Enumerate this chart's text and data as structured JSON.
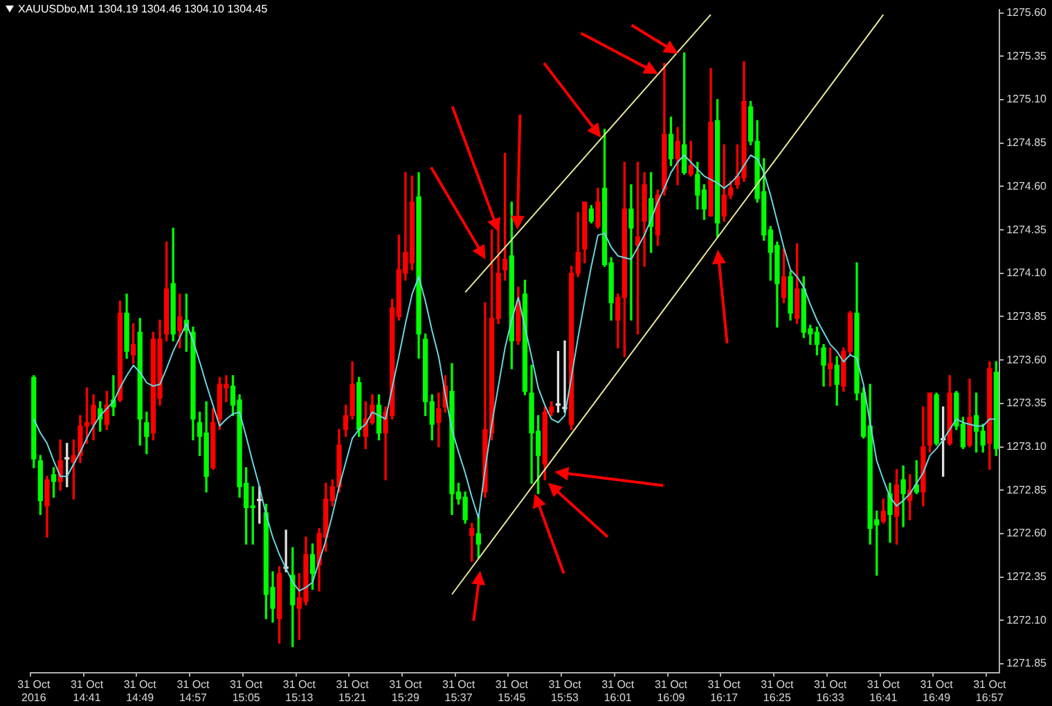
{
  "chart_data": {
    "type": "candlestick",
    "title": "XAUUSDbo,M1 1304.19 1304.46 1304.10 1304.45",
    "categories": [
      "31 Oct 2016",
      null,
      null,
      null,
      null,
      null,
      null,
      null,
      "31 Oct 14:41",
      null,
      null,
      null,
      null,
      null,
      null,
      null,
      "31 Oct 14:49",
      null,
      null,
      null,
      null,
      null,
      null,
      null,
      "31 Oct 14:57",
      null,
      null,
      null,
      null,
      null,
      null,
      null,
      "31 Oct 15:05",
      null,
      null,
      null,
      null,
      null,
      null,
      null,
      "31 Oct 15:13",
      null,
      null,
      null,
      null,
      null,
      null,
      null,
      "31 Oct 15:21",
      null,
      null,
      null,
      null,
      null,
      null,
      null,
      "31 Oct 15:29",
      null,
      null,
      null,
      null,
      null,
      null,
      null,
      "31 Oct 15:37",
      null,
      null,
      null,
      null,
      null,
      null,
      null,
      "31 Oct 15:45",
      null,
      null,
      null,
      null,
      null,
      null,
      null,
      "31 Oct 15:53",
      null,
      null,
      null,
      null,
      null,
      null,
      null,
      "31 Oct 16:01",
      null,
      null,
      null,
      null,
      null,
      null,
      null,
      "31 Oct 16:09",
      null,
      null,
      null,
      null,
      null,
      null,
      null,
      "31 Oct 16:17",
      null,
      null,
      null,
      null,
      null,
      null,
      null,
      "31 Oct 16:25",
      null,
      null,
      null,
      null,
      null,
      null,
      null,
      "31 Oct 16:33",
      null,
      null,
      null,
      null,
      null,
      null,
      null,
      "31 Oct 16:41",
      null,
      null,
      null,
      null,
      null,
      null,
      null,
      "31 Oct 16:49",
      null,
      null,
      null,
      null,
      null,
      null,
      null,
      "31 Oct 16:57",
      null
    ],
    "ohlc": [
      [
        1273.5,
        1273.51,
        1272.98,
        1273.03
      ],
      [
        1273.02,
        1273.05,
        1272.71,
        1272.79
      ],
      [
        1272.76,
        1272.93,
        1272.58,
        1272.91
      ],
      [
        1272.94,
        1272.98,
        1272.81,
        1272.9
      ],
      [
        1272.9,
        1273.14,
        1272.85,
        1273.02
      ],
      [
        1273.03,
        1273.12,
        1272.87,
        1273.03
      ],
      [
        1273.01,
        1273.14,
        1272.8,
        1273.05
      ],
      [
        1273.05,
        1273.28,
        1273.01,
        1273.22
      ],
      [
        1273.22,
        1273.44,
        1273.12,
        1273.24
      ],
      [
        1273.23,
        1273.4,
        1273.14,
        1273.34
      ],
      [
        1273.32,
        1273.36,
        1273.19,
        1273.26
      ],
      [
        1273.23,
        1273.42,
        1273.2,
        1273.34
      ],
      [
        1273.37,
        1273.51,
        1273.28,
        1273.33
      ],
      [
        1273.37,
        1273.94,
        1273.36,
        1273.87
      ],
      [
        1273.87,
        1273.98,
        1273.61,
        1273.65
      ],
      [
        1273.63,
        1273.81,
        1273.58,
        1273.69
      ],
      [
        1273.76,
        1273.84,
        1273.11,
        1273.26
      ],
      [
        1273.24,
        1273.3,
        1273.06,
        1273.16
      ],
      [
        1273.18,
        1273.76,
        1273.14,
        1273.72
      ],
      [
        1273.38,
        1273.83,
        1273.34,
        1273.72
      ],
      [
        1273.75,
        1274.28,
        1273.71,
        1274.01
      ],
      [
        1274.04,
        1274.36,
        1273.71,
        1273.75
      ],
      [
        1273.77,
        1273.98,
        1273.67,
        1273.85
      ],
      [
        1273.83,
        1273.98,
        1273.65,
        1273.77
      ],
      [
        1273.76,
        1273.79,
        1273.14,
        1273.26
      ],
      [
        1273.24,
        1273.3,
        1273.05,
        1273.16
      ],
      [
        1273.18,
        1273.36,
        1272.84,
        1272.93
      ],
      [
        1272.98,
        1273.32,
        1272.97,
        1273.24
      ],
      [
        1273.26,
        1273.5,
        1273.2,
        1273.46
      ],
      [
        1273.44,
        1273.51,
        1273.36,
        1273.46
      ],
      [
        1273.45,
        1273.51,
        1273.28,
        1273.34
      ],
      [
        1273.37,
        1273.4,
        1272.81,
        1272.87
      ],
      [
        1272.89,
        1272.98,
        1272.54,
        1272.75
      ],
      [
        1272.76,
        1272.87,
        1272.54,
        1272.75
      ],
      [
        1272.79,
        1272.87,
        1272.66,
        1272.79
      ],
      [
        1272.72,
        1272.77,
        1272.11,
        1272.25
      ],
      [
        1272.29,
        1272.38,
        1272.09,
        1272.17
      ],
      [
        1272.11,
        1272.41,
        1271.97,
        1272.37
      ],
      [
        1272.4,
        1272.62,
        1272.38,
        1272.4
      ],
      [
        1272.36,
        1272.52,
        1271.95,
        1272.19
      ],
      [
        1272.17,
        1272.37,
        1271.99,
        1272.23
      ],
      [
        1272.21,
        1272.58,
        1272.19,
        1272.48
      ],
      [
        1272.48,
        1272.54,
        1272.28,
        1272.37
      ],
      [
        1272.42,
        1272.63,
        1272.27,
        1272.6
      ],
      [
        1272.58,
        1272.89,
        1272.5,
        1272.8
      ],
      [
        1272.79,
        1272.91,
        1272.76,
        1272.87
      ],
      [
        1272.87,
        1273.2,
        1272.84,
        1273.11
      ],
      [
        1273.2,
        1273.34,
        1273.16,
        1273.28
      ],
      [
        1273.28,
        1273.59,
        1273.26,
        1273.46
      ],
      [
        1273.47,
        1273.5,
        1273.16,
        1273.2
      ],
      [
        1273.16,
        1273.36,
        1273.09,
        1273.26
      ],
      [
        1273.24,
        1273.4,
        1273.23,
        1273.34
      ],
      [
        1273.34,
        1273.4,
        1273.14,
        1273.18
      ],
      [
        1273.18,
        1273.33,
        1272.91,
        1273.3
      ],
      [
        1273.28,
        1273.95,
        1273.26,
        1273.9
      ],
      [
        1273.85,
        1274.32,
        1273.83,
        1274.12
      ],
      [
        1274.1,
        1274.68,
        1274.06,
        1274.22
      ],
      [
        1274.16,
        1274.66,
        1274.12,
        1274.51
      ],
      [
        1274.54,
        1274.68,
        1273.61,
        1273.75
      ],
      [
        1273.72,
        1273.75,
        1273.28,
        1273.36
      ],
      [
        1273.36,
        1273.4,
        1273.14,
        1273.23
      ],
      [
        1273.24,
        1273.41,
        1273.1,
        1273.32
      ],
      [
        1273.33,
        1273.51,
        1273.3,
        1273.45
      ],
      [
        1273.42,
        1273.58,
        1272.71,
        1272.83
      ],
      [
        1272.84,
        1272.89,
        1272.77,
        1272.8
      ],
      [
        1272.81,
        1272.84,
        1272.66,
        1272.68
      ],
      [
        1272.59,
        1272.66,
        1272.44,
        1272.63
      ],
      [
        1272.6,
        1272.7,
        1272.46,
        1272.54
      ],
      [
        1272.84,
        1273.93,
        1272.81,
        1273.2
      ],
      [
        1273.18,
        1274.35,
        1273.14,
        1273.84
      ],
      [
        1273.84,
        1274.4,
        1273.81,
        1274.1
      ],
      [
        1274.12,
        1274.79,
        1274.06,
        1274.18
      ],
      [
        1274.2,
        1274.51,
        1273.55,
        1273.71
      ],
      [
        1273.71,
        1274.02,
        1273.69,
        1273.94
      ],
      [
        1273.98,
        1274.06,
        1273.4,
        1273.42
      ],
      [
        1273.41,
        1273.57,
        1272.89,
        1273.18
      ],
      [
        1273.19,
        1273.28,
        1272.83,
        1273.05
      ],
      [
        1273.0,
        1273.33,
        1272.91,
        1273.3
      ],
      [
        1273.3,
        1273.36,
        1273.28,
        1273.33
      ],
      [
        1273.34,
        1273.65,
        1273.3,
        1273.34
      ],
      [
        1273.32,
        1273.71,
        1273.3,
        1273.32
      ],
      [
        1273.23,
        1274.14,
        1273.2,
        1274.1
      ],
      [
        1274.1,
        1274.45,
        1274.08,
        1274.22
      ],
      [
        1274.24,
        1274.51,
        1274.16,
        1274.51
      ],
      [
        1274.47,
        1274.49,
        1274.39,
        1274.4
      ],
      [
        1274.37,
        1274.59,
        1274.36,
        1274.51
      ],
      [
        1274.59,
        1274.93,
        1274.14,
        1274.15
      ],
      [
        1274.16,
        1274.19,
        1273.83,
        1273.93
      ],
      [
        1273.83,
        1273.98,
        1273.67,
        1273.96
      ],
      [
        1273.96,
        1274.74,
        1273.62,
        1274.47
      ],
      [
        1274.47,
        1274.61,
        1273.83,
        1274.36
      ],
      [
        1274.26,
        1274.74,
        1273.75,
        1274.31
      ],
      [
        1274.4,
        1274.68,
        1274.14,
        1274.61
      ],
      [
        1274.53,
        1274.68,
        1274.22,
        1274.37
      ],
      [
        1274.32,
        1274.58,
        1274.26,
        1274.55
      ],
      [
        1274.58,
        1275.31,
        1274.55,
        1274.9
      ],
      [
        1274.9,
        1275.0,
        1274.72,
        1274.76
      ],
      [
        1274.76,
        1274.94,
        1274.61,
        1274.86
      ],
      [
        1274.84,
        1275.37,
        1274.67,
        1274.68
      ],
      [
        1274.67,
        1274.86,
        1274.66,
        1274.72
      ],
      [
        1274.67,
        1274.74,
        1274.47,
        1274.55
      ],
      [
        1274.58,
        1274.61,
        1274.41,
        1274.47
      ],
      [
        1274.43,
        1275.28,
        1274.43,
        1274.97
      ],
      [
        1274.98,
        1275.1,
        1274.31,
        1274.39
      ],
      [
        1274.43,
        1274.84,
        1274.4,
        1274.55
      ],
      [
        1274.55,
        1274.63,
        1274.53,
        1274.59
      ],
      [
        1274.61,
        1274.84,
        1274.59,
        1274.66
      ],
      [
        1274.65,
        1275.32,
        1274.63,
        1275.09
      ],
      [
        1275.06,
        1275.09,
        1274.84,
        1274.86
      ],
      [
        1274.86,
        1274.98,
        1274.51,
        1274.53
      ],
      [
        1274.57,
        1274.76,
        1274.29,
        1274.32
      ],
      [
        1274.35,
        1274.37,
        1274.06,
        1274.22
      ],
      [
        1274.26,
        1274.28,
        1273.79,
        1274.04
      ],
      [
        1273.96,
        1274.24,
        1273.93,
        1274.08
      ],
      [
        1274.08,
        1274.11,
        1273.83,
        1273.87
      ],
      [
        1273.84,
        1274.27,
        1273.81,
        1274.01
      ],
      [
        1274.01,
        1274.08,
        1273.73,
        1273.76
      ],
      [
        1273.78,
        1273.8,
        1273.69,
        1273.75
      ],
      [
        1273.76,
        1273.79,
        1273.63,
        1273.69
      ],
      [
        1273.67,
        1273.69,
        1273.45,
        1273.57
      ],
      [
        1273.55,
        1273.67,
        1273.45,
        1273.58
      ],
      [
        1273.57,
        1273.62,
        1273.34,
        1273.46
      ],
      [
        1273.45,
        1273.67,
        1273.42,
        1273.65
      ],
      [
        1273.65,
        1273.88,
        1273.63,
        1273.87
      ],
      [
        1273.87,
        1274.16,
        1273.37,
        1273.41
      ],
      [
        1273.41,
        1273.44,
        1273.15,
        1273.16
      ],
      [
        1273.22,
        1273.46,
        1272.54,
        1272.63
      ],
      [
        1272.68,
        1272.73,
        1272.36,
        1272.65
      ],
      [
        1272.67,
        1272.8,
        1272.66,
        1272.73
      ],
      [
        1272.83,
        1272.89,
        1272.55,
        1272.71
      ],
      [
        1272.7,
        1272.97,
        1272.54,
        1272.88
      ],
      [
        1272.91,
        1272.99,
        1272.64,
        1272.83
      ],
      [
        1272.79,
        1272.94,
        1272.68,
        1272.85
      ],
      [
        1272.88,
        1273.02,
        1272.83,
        1272.84
      ],
      [
        1272.84,
        1273.33,
        1272.76,
        1273.1
      ],
      [
        1273.11,
        1273.41,
        1273.07,
        1273.41
      ],
      [
        1273.4,
        1273.41,
        1273.11,
        1273.12
      ],
      [
        1273.14,
        1273.33,
        1272.93,
        1273.14
      ],
      [
        1273.12,
        1273.51,
        1273.11,
        1273.41
      ],
      [
        1273.41,
        1273.42,
        1273.2,
        1273.22
      ],
      [
        1273.23,
        1273.27,
        1273.09,
        1273.1
      ],
      [
        1273.11,
        1273.49,
        1273.1,
        1273.27
      ],
      [
        1273.28,
        1273.41,
        1273.07,
        1273.19
      ],
      [
        1273.19,
        1273.23,
        1273.07,
        1273.11
      ],
      [
        1273.12,
        1273.59,
        1272.97,
        1273.55
      ],
      [
        1273.53,
        1273.59,
        1273.05,
        1273.09
      ]
    ],
    "colors": [
      "#00ff00",
      "#00ff00",
      "#ff0000",
      "#00ff00",
      "#ff0000",
      "#e0e0e0",
      "#ff0000",
      "#ff0000",
      "#ff0000",
      "#ff0000",
      "#00ff00",
      "#ff0000",
      "#00ff00",
      "#ff0000",
      "#00ff00",
      "#ff0000",
      "#00ff00",
      "#00ff00",
      "#ff0000",
      "#ff0000",
      "#ff0000",
      "#00ff00",
      "#ff0000",
      "#00ff00",
      "#00ff00",
      "#00ff00",
      "#00ff00",
      "#ff0000",
      "#ff0000",
      "#ff0000",
      "#00ff00",
      "#00ff00",
      "#00ff00",
      "#00ff00",
      "#e0e0e0",
      "#00ff00",
      "#00ff00",
      "#ff0000",
      "#e0e0e0",
      "#00ff00",
      "#ff0000",
      "#ff0000",
      "#00ff00",
      "#ff0000",
      "#ff0000",
      "#ff0000",
      "#ff0000",
      "#ff0000",
      "#ff0000",
      "#00ff00",
      "#ff0000",
      "#ff0000",
      "#00ff00",
      "#ff0000",
      "#ff0000",
      "#ff0000",
      "#ff0000",
      "#ff0000",
      "#00ff00",
      "#00ff00",
      "#00ff00",
      "#ff0000",
      "#ff0000",
      "#00ff00",
      "#00ff00",
      "#00ff00",
      "#ff0000",
      "#00ff00",
      "#ff0000",
      "#ff0000",
      "#ff0000",
      "#ff0000",
      "#00ff00",
      "#ff0000",
      "#00ff00",
      "#00ff00",
      "#00ff00",
      "#ff0000",
      "#ff0000",
      "#e0e0e0",
      "#e0e0e0",
      "#ff0000",
      "#ff0000",
      "#ff0000",
      "#00ff00",
      "#ff0000",
      "#00ff00",
      "#00ff00",
      "#ff0000",
      "#ff0000",
      "#00ff00",
      "#ff0000",
      "#ff0000",
      "#00ff00",
      "#ff0000",
      "#ff0000",
      "#00ff00",
      "#ff0000",
      "#00ff00",
      "#ff0000",
      "#00ff00",
      "#00ff00",
      "#ff0000",
      "#00ff00",
      "#ff0000",
      "#ff0000",
      "#ff0000",
      "#ff0000",
      "#00ff00",
      "#00ff00",
      "#00ff00",
      "#00ff00",
      "#00ff00",
      "#ff0000",
      "#00ff00",
      "#ff0000",
      "#00ff00",
      "#00ff00",
      "#00ff00",
      "#00ff00",
      "#ff0000",
      "#00ff00",
      "#ff0000",
      "#ff0000",
      "#00ff00",
      "#00ff00",
      "#00ff00",
      "#00ff00",
      "#ff0000",
      "#00ff00",
      "#ff0000",
      "#00ff00",
      "#ff0000",
      "#00ff00",
      "#ff0000",
      "#ff0000",
      "#00ff00",
      "#e0e0e0",
      "#ff0000",
      "#00ff00",
      "#00ff00",
      "#ff0000",
      "#00ff00",
      "#00ff00",
      "#ff0000",
      "#00ff00"
    ],
    "series": [
      {
        "type": "line",
        "color": "#6ad8e0",
        "values": [
          1273.26,
          1273.18,
          1273.12,
          1273.02,
          1272.93,
          1272.93,
          1273.0,
          1273.07,
          1273.15,
          1273.22,
          1273.28,
          1273.32,
          1273.36,
          1273.44,
          1273.51,
          1273.57,
          1273.53,
          1273.47,
          1273.45,
          1273.46,
          1273.55,
          1273.65,
          1273.73,
          1273.81,
          1273.71,
          1273.59,
          1273.46,
          1273.34,
          1273.22,
          1273.26,
          1273.29,
          1273.3,
          1273.16,
          1273.01,
          1272.87,
          1272.71,
          1272.58,
          1272.48,
          1272.4,
          1272.32,
          1272.27,
          1272.29,
          1272.32,
          1272.44,
          1272.56,
          1272.71,
          1272.87,
          1273.01,
          1273.15,
          1273.2,
          1273.23,
          1273.3,
          1273.28,
          1273.26,
          1273.44,
          1273.62,
          1273.81,
          1273.98,
          1274.08,
          1273.94,
          1273.77,
          1273.62,
          1273.4,
          1273.2,
          1273.07,
          1272.95,
          1272.81,
          1272.69,
          1272.97,
          1273.23,
          1273.45,
          1273.67,
          1273.83,
          1273.96,
          1273.79,
          1273.62,
          1273.44,
          1273.34,
          1273.26,
          1273.24,
          1273.28,
          1273.5,
          1273.73,
          1273.94,
          1274.14,
          1274.32,
          1274.33,
          1274.25,
          1274.2,
          1274.19,
          1274.18,
          1274.25,
          1274.32,
          1274.41,
          1274.51,
          1274.59,
          1274.68,
          1274.74,
          1274.78,
          1274.74,
          1274.7,
          1274.66,
          1274.64,
          1274.62,
          1274.59,
          1274.62,
          1274.66,
          1274.72,
          1274.78,
          1274.76,
          1274.68,
          1274.55,
          1274.4,
          1274.25,
          1274.12,
          1274.08,
          1274.02,
          1273.92,
          1273.83,
          1273.76,
          1273.69,
          1273.65,
          1273.59,
          1273.63,
          1273.61,
          1273.46,
          1273.24,
          1273.02,
          1272.91,
          1272.81,
          1272.76,
          1272.79,
          1272.83,
          1272.89,
          1272.95,
          1273.05,
          1273.09,
          1273.14,
          1273.2,
          1273.26,
          1273.24,
          1273.23,
          1273.22,
          1273.22,
          1273.26,
          1273.26
        ]
      },
      {
        "type": "line",
        "color": "#e8e89a",
        "values": [
          null,
          null,
          null,
          null,
          null,
          null,
          null,
          null,
          null,
          null,
          null,
          null,
          null,
          null,
          null,
          null,
          null,
          null,
          null,
          null,
          null,
          null,
          null,
          null,
          null,
          null,
          null,
          null,
          null,
          null,
          null,
          null,
          null,
          null,
          null,
          null,
          null,
          null,
          null,
          null,
          null,
          null,
          null,
          null,
          null,
          null,
          null,
          null,
          null,
          null,
          null,
          null,
          null,
          null,
          null,
          null,
          null,
          null,
          null,
          null,
          null,
          null,
          null,
          null,
          null,
          1273.99,
          null,
          null,
          null,
          null,
          null,
          null,
          null,
          null,
          null,
          null,
          null,
          null,
          null,
          null,
          null,
          null,
          null,
          null,
          null,
          null,
          null,
          null,
          null,
          null,
          null,
          null,
          null,
          null,
          null,
          null,
          null,
          null,
          null,
          null,
          null,
          null,
          1275.59,
          null,
          null,
          null,
          null,
          null,
          null,
          null,
          null,
          null,
          null,
          null,
          null,
          null,
          null,
          null,
          null,
          null,
          null,
          null,
          null,
          null,
          null,
          null,
          null,
          null,
          null,
          null,
          null,
          null,
          null,
          null,
          null,
          null,
          null,
          null,
          null,
          null,
          null,
          null,
          null,
          null,
          null,
          null
        ]
      },
      {
        "type": "line",
        "color": "#e8e89a",
        "values": [
          null,
          null,
          null,
          null,
          null,
          null,
          null,
          null,
          null,
          null,
          null,
          null,
          null,
          null,
          null,
          null,
          null,
          null,
          null,
          null,
          null,
          null,
          null,
          null,
          null,
          null,
          null,
          null,
          null,
          null,
          null,
          null,
          null,
          null,
          null,
          null,
          null,
          null,
          null,
          null,
          null,
          null,
          null,
          null,
          null,
          null,
          null,
          null,
          null,
          null,
          null,
          null,
          null,
          null,
          null,
          null,
          null,
          null,
          null,
          null,
          null,
          null,
          null,
          1272.25,
          null,
          null,
          null,
          null,
          null,
          null,
          null,
          null,
          null,
          null,
          null,
          null,
          null,
          null,
          null,
          null,
          null,
          null,
          null,
          null,
          null,
          null,
          null,
          null,
          null,
          null,
          null,
          null,
          null,
          null,
          null,
          null,
          null,
          null,
          null,
          null,
          null,
          null,
          null,
          null,
          null,
          null,
          null,
          null,
          null,
          null,
          null,
          null,
          null,
          null,
          null,
          null,
          null,
          null,
          null,
          null,
          null,
          null,
          null,
          null,
          null,
          null,
          null,
          null,
          1275.59,
          null,
          null,
          null,
          null,
          null,
          null,
          null,
          null,
          null,
          null,
          null,
          null,
          null,
          null,
          null,
          null,
          null
        ]
      }
    ],
    "ylim": [
      1271.8,
      1275.62
    ],
    "yticks": [
      1271.85,
      {
        "value": 1272.1,
        "label": "1272.10"
      },
      1272.35,
      {
        "value": 1272.6,
        "label": "1272.60"
      },
      1272.85,
      {
        "value": 1273.1,
        "label": "1273.10"
      },
      1273.35,
      {
        "value": 1273.6,
        "label": "1273.60"
      },
      1273.85,
      {
        "value": 1274.1,
        "label": "1274.10"
      },
      1274.35,
      {
        "value": 1274.6,
        "label": "1274.60"
      },
      1274.85,
      {
        "value": 1275.1,
        "label": "1275.10"
      },
      1275.35,
      {
        "value": 1275.6,
        "label": "1275.60"
      }
    ],
    "grid": false,
    "legend": false,
    "marker": "none"
  }
}
